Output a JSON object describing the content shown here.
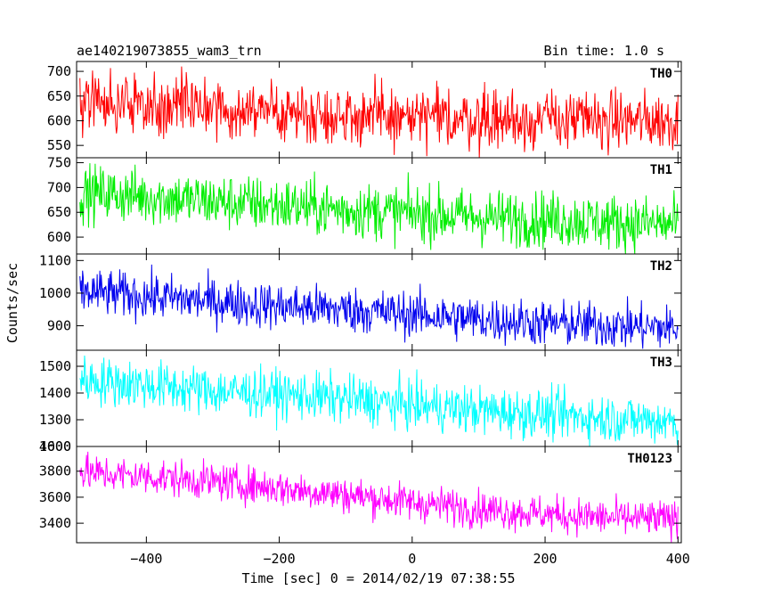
{
  "chart_data": {
    "type": "line",
    "title": "ae140219073855_wam3_trn",
    "subtitle": "Bin time: 1.0 s",
    "xlabel": "Time [sec] 0 = 2014/02/19 07:38:55",
    "ylabel": "Counts/sec",
    "xlim": [
      -505,
      405
    ],
    "x_ticks": [
      -400,
      -200,
      0,
      200,
      400
    ],
    "x_tick_labels": [
      "−400",
      "−200",
      "0",
      "200",
      "400"
    ],
    "x_start": -500,
    "x_end": 400,
    "bin_seconds": 1.0,
    "series": [
      {
        "name": "TH0",
        "color": "#ff0000",
        "ylim": [
          525,
          720
        ],
        "y_ticks": [
          550,
          600,
          650,
          700
        ],
        "trend": [
          [
            -500,
            640
          ],
          [
            -400,
            633
          ],
          [
            -300,
            625
          ],
          [
            -200,
            618
          ],
          [
            -100,
            612
          ],
          [
            0,
            605
          ],
          [
            100,
            603
          ],
          [
            200,
            602
          ],
          [
            300,
            600
          ],
          [
            400,
            600
          ]
        ],
        "noise": 30
      },
      {
        "name": "TH1",
        "color": "#00ee00",
        "ylim": [
          566,
          760
        ],
        "y_ticks": [
          600,
          650,
          700,
          750
        ],
        "trend": [
          [
            -500,
            690
          ],
          [
            -400,
            682
          ],
          [
            -300,
            672
          ],
          [
            -200,
            664
          ],
          [
            -100,
            655
          ],
          [
            0,
            648
          ],
          [
            100,
            640
          ],
          [
            200,
            636
          ],
          [
            300,
            630
          ],
          [
            400,
            625
          ]
        ],
        "noise": 28
      },
      {
        "name": "TH2",
        "color": "#0000ee",
        "ylim": [
          825,
          1120
        ],
        "y_ticks": [
          900,
          1000,
          1100
        ],
        "trend": [
          [
            -500,
            1005
          ],
          [
            -400,
            990
          ],
          [
            -300,
            975
          ],
          [
            -200,
            960
          ],
          [
            -100,
            950
          ],
          [
            0,
            935
          ],
          [
            100,
            920
          ],
          [
            200,
            908
          ],
          [
            300,
            900
          ],
          [
            400,
            892
          ]
        ],
        "noise": 35
      },
      {
        "name": "TH3",
        "color": "#00ffff",
        "ylim": [
          1200,
          1560
        ],
        "y_ticks": [
          1300,
          1400,
          1500
        ],
        "y_tick_labels": [
          "1300",
          "1400",
          "1500"
        ],
        "trend": [
          [
            -500,
            1450
          ],
          [
            -400,
            1430
          ],
          [
            -300,
            1408
          ],
          [
            -200,
            1395
          ],
          [
            -100,
            1378
          ],
          [
            0,
            1355
          ],
          [
            100,
            1335
          ],
          [
            200,
            1320
          ],
          [
            300,
            1305
          ],
          [
            400,
            1295
          ]
        ],
        "noise": 45
      },
      {
        "name": "TH0123",
        "color": "#ff00ff",
        "ylim": [
          3250,
          3990
        ],
        "y_ticks": [
          3400,
          3600,
          3800
        ],
        "extra_tick_labels": [
          "4000",
          "1600"
        ],
        "trend": [
          [
            -500,
            3790
          ],
          [
            -400,
            3760
          ],
          [
            -300,
            3720
          ],
          [
            -200,
            3670
          ],
          [
            -100,
            3620
          ],
          [
            0,
            3560
          ],
          [
            100,
            3510
          ],
          [
            200,
            3470
          ],
          [
            300,
            3440
          ],
          [
            400,
            3430
          ]
        ],
        "noise": 70
      }
    ]
  }
}
